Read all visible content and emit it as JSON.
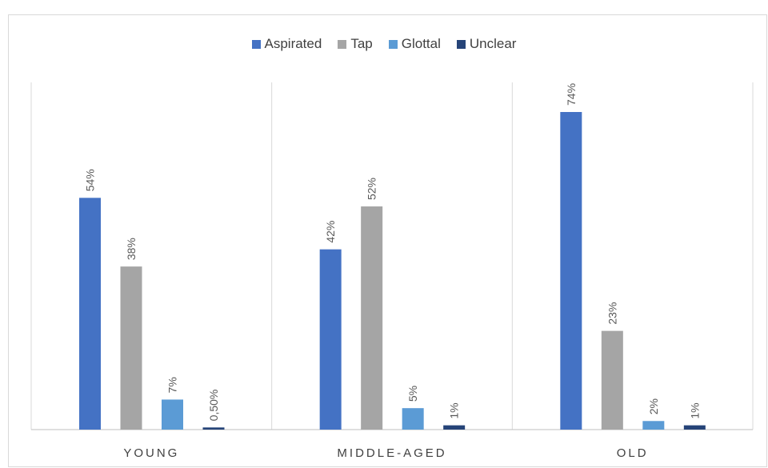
{
  "chart_data": {
    "type": "bar",
    "categories": [
      "YOUNG",
      "MIDDLE-AGED",
      "OLD"
    ],
    "series": [
      {
        "name": "Aspirated",
        "color": "#4472c4",
        "values": [
          54,
          42,
          74
        ],
        "labels": [
          "54%",
          "42%",
          "74%"
        ]
      },
      {
        "name": "Tap",
        "color": "#a5a5a5",
        "values": [
          38,
          52,
          23
        ],
        "labels": [
          "38%",
          "52%",
          "23%"
        ]
      },
      {
        "name": "Glottal",
        "color": "#5b9bd5",
        "values": [
          7,
          5,
          2
        ],
        "labels": [
          "7%",
          "5%",
          "2%"
        ]
      },
      {
        "name": "Unclear",
        "color": "#264478",
        "values": [
          0.5,
          1,
          1
        ],
        "labels": [
          "0,50%",
          "1%",
          "1%"
        ]
      }
    ],
    "ylim": [
      0,
      74
    ],
    "legend": "top-center",
    "grid": false
  }
}
